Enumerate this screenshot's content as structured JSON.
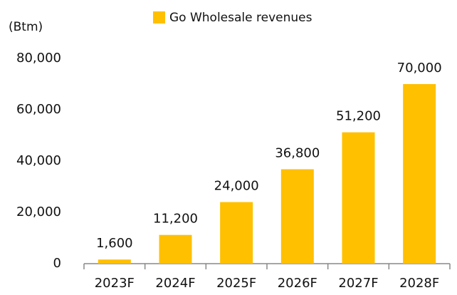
{
  "chart_data": {
    "type": "bar",
    "y_label": "(Btm)",
    "categories": [
      "2023F",
      "2024F",
      "2025F",
      "2026F",
      "2027F",
      "2028F"
    ],
    "series": [
      {
        "name": "Go Wholesale revenues",
        "color": "#ffc000",
        "values": [
          1600,
          11200,
          24000,
          36800,
          51200,
          70000
        ],
        "value_labels": [
          "1,600",
          "11,200",
          "24,000",
          "36,800",
          "51,200",
          "70,000"
        ]
      }
    ],
    "ylim": [
      0,
      80000
    ],
    "yticks": [
      0,
      {
        "value": 20000,
        "label": "20,000"
      },
      {
        "value": 40000,
        "label": "40,000"
      },
      {
        "value": 60000,
        "label": "60,000"
      },
      {
        "value": 80000,
        "label": "80,000"
      }
    ],
    "grid": false,
    "legend": "top"
  }
}
